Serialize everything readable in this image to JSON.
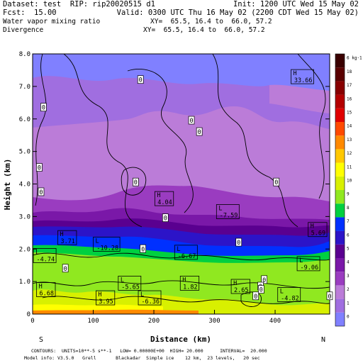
{
  "header": {
    "line1_left": "Dataset: test  RIP: rip20020515 d1",
    "line1_right": "Init: 1200 UTC Wed 15 May 02",
    "fcst_label": "Fcst:",
    "fcst_value": "15.00",
    "valid": "Valid: 0300 UTC Thu 16 May 02 (2200 CDT Wed 15 May 02)",
    "field1": "Water vapor mixing ratio",
    "xy1": "XY=  65.5, 16.4 to  66.0, 57.2",
    "field2": "Divergence",
    "xy2": "XY=  65.5, 16.4 to  66.0, 57.2"
  },
  "footer": {
    "contours": "CONTOURS:  UNITS=10**-5 s**-1   LOW= 0.00000E+00  HIGH= 20.000      INTERVAL=  20.000",
    "model": "Model info: V3.5.0   Grell       Blackadar  Simple ice    12 km,  23 levels,   20 sec"
  },
  "chart_data": {
    "type": "heatmap",
    "xlabel": "Distance (km)",
    "ylabel": "Height (km)",
    "xlim": [
      0,
      490
    ],
    "ylim": [
      0,
      8
    ],
    "xticks": [
      0,
      100,
      200,
      300,
      400
    ],
    "yticks": [
      "0",
      "1.0",
      "2.0",
      "3.0",
      "4.0",
      "5.0",
      "6.0",
      "7.0",
      "8.0"
    ],
    "left_end": "S",
    "right_end": "N",
    "colorbar": {
      "unit": "g kg-1",
      "levels": [
        {
          "label": "0",
          "color": "#8080ff"
        },
        {
          "label": "1",
          "color": "#a06ee0"
        },
        {
          "label": "2",
          "color": "#bb7cd8"
        },
        {
          "label": "3",
          "color": "#9a3cc0"
        },
        {
          "label": "4",
          "color": "#7a18a8"
        },
        {
          "label": "5",
          "color": "#5a0090"
        },
        {
          "label": "6",
          "color": "#2c14c8"
        },
        {
          "label": "7",
          "color": "#0030ff"
        },
        {
          "label": "8",
          "color": "#00d040"
        },
        {
          "label": "9",
          "color": "#90e820"
        },
        {
          "label": "10",
          "color": "#d8f000"
        },
        {
          "label": "11",
          "color": "#ffff00"
        },
        {
          "label": "12",
          "color": "#ffc800"
        },
        {
          "label": "13",
          "color": "#ff8a00"
        },
        {
          "label": "14",
          "color": "#ff4a00"
        },
        {
          "label": "15",
          "color": "#e00000"
        },
        {
          "label": "16",
          "color": "#b40000"
        },
        {
          "label": "17",
          "color": "#880000"
        },
        {
          "label": "18",
          "color": "#5a0000"
        },
        {
          "label": "6 kg-1",
          "color": "#3a0000"
        }
      ]
    },
    "annotations": [
      {
        "text": "H\n33.66",
        "x": 445,
        "y": 7.3
      },
      {
        "text": "H\n4.04",
        "x": 217,
        "y": 3.55
      },
      {
        "text": "L\n-7.59",
        "x": 322,
        "y": 3.15
      },
      {
        "text": "H\n5.69",
        "x": 470,
        "y": 2.6
      },
      {
        "text": "H\n3.71",
        "x": 57,
        "y": 2.35
      },
      {
        "text": "L\n-10.28",
        "x": 122,
        "y": 2.15
      },
      {
        "text": "L\n-4.74",
        "x": 20,
        "y": 1.8
      },
      {
        "text": "L\n-6.67",
        "x": 253,
        "y": 1.9
      },
      {
        "text": "L\n-9.06",
        "x": 455,
        "y": 1.55
      },
      {
        "text": "H\n6.68",
        "x": 22,
        "y": 0.75
      },
      {
        "text": "L\n-5.65",
        "x": 160,
        "y": 0.95
      },
      {
        "text": "H\n1.82",
        "x": 259,
        "y": 0.95
      },
      {
        "text": "H\n2.65",
        "x": 343,
        "y": 0.85
      },
      {
        "text": "L\n-4.82",
        "x": 423,
        "y": 0.6
      },
      {
        "text": "H\n3.95",
        "x": 120,
        "y": 0.5
      },
      {
        "text": "L\n-6.36",
        "x": 193,
        "y": 0.5
      }
    ],
    "zero_labels": [
      {
        "text": "0",
        "x": 178,
        "y": 7.2
      },
      {
        "text": "0",
        "x": 18,
        "y": 6.35
      },
      {
        "text": "0",
        "x": 262,
        "y": 5.95
      },
      {
        "text": "0",
        "x": 275,
        "y": 5.6
      },
      {
        "text": "0",
        "x": 11,
        "y": 4.5
      },
      {
        "text": "0",
        "x": 170,
        "y": 4.05
      },
      {
        "text": "0",
        "x": 402,
        "y": 4.05
      },
      {
        "text": "0",
        "x": 14,
        "y": 3.75
      },
      {
        "text": "0",
        "x": 219,
        "y": 2.95
      },
      {
        "text": "0",
        "x": 340,
        "y": 2.2
      },
      {
        "text": "0",
        "x": 182,
        "y": 2.0
      },
      {
        "text": "0",
        "x": 54,
        "y": 1.4
      },
      {
        "text": "0",
        "x": 382,
        "y": 1.05
      },
      {
        "text": "0",
        "x": 376,
        "y": 0.85
      },
      {
        "text": "0",
        "x": 377,
        "y": 0.75
      },
      {
        "text": "0",
        "x": 368,
        "y": 0.55
      },
      {
        "text": "0",
        "x": 490,
        "y": 0.55
      }
    ]
  }
}
